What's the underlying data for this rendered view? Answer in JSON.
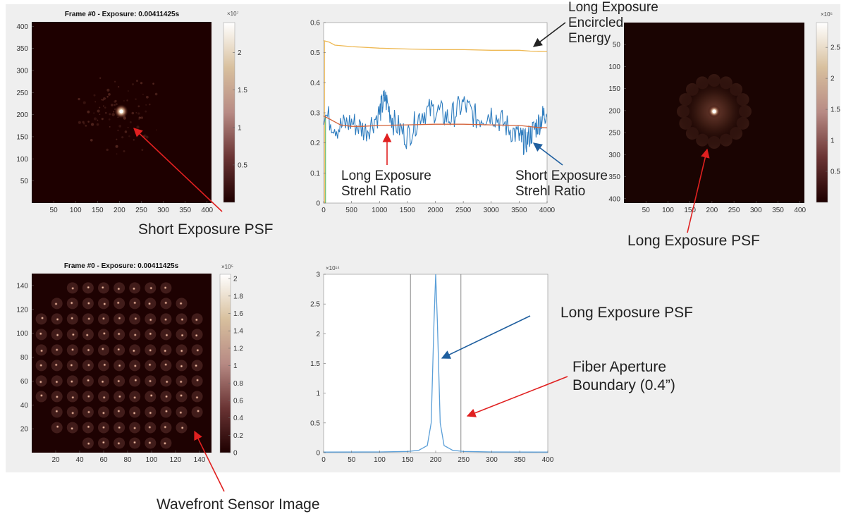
{
  "colors": {
    "panel_bg": "#efefef",
    "strehl_short": "#2f7dbf",
    "strehl_long": "#d4633a",
    "encircled": "#eeb852",
    "psf_line": "#5b9fd8",
    "aperture_line": "#8a8a8a",
    "arrow_red": "#e02020",
    "arrow_blue": "#1f5f9f",
    "arrow_black": "#222222"
  },
  "annotations": {
    "short_psf": "Short Exposure PSF",
    "long_psf_right": "Long Exposure PSF",
    "wfs": "Wavefront Sensor Image",
    "encircled_1": "Long Exposure",
    "encircled_2": "Encircled",
    "encircled_3": "Energy",
    "long_strehl_1": "Long Exposure",
    "long_strehl_2": "Strehl Ratio",
    "short_strehl_1": "Short Exposure",
    "short_strehl_2": "Strehl Ratio",
    "long_psf_plot": "Long Exposure PSF",
    "fiber_1": "Fiber Aperture",
    "fiber_2": "Boundary (0.4”)"
  },
  "chart_data": [
    {
      "type": "heatmap",
      "id": "short_psf",
      "title": "Frame #0 - Exposure: 0.00411425s",
      "x_ticks": [
        50,
        100,
        150,
        200,
        250,
        300,
        350,
        400
      ],
      "y_ticks": [
        50,
        100,
        150,
        200,
        250,
        300,
        350,
        400
      ],
      "xlim": [
        0,
        410
      ],
      "ylim": [
        0,
        410
      ],
      "colorbar": {
        "exponent": "×10⁷",
        "ticks": [
          "0.5",
          "1",
          "1.5",
          "2"
        ],
        "tick_values": [
          0.5,
          1,
          1.5,
          2
        ],
        "max": 2.4
      },
      "peak": [
        200,
        200
      ]
    },
    {
      "type": "line",
      "id": "strehl",
      "title": "",
      "x_ticks": [
        0,
        500,
        1000,
        1500,
        2000,
        2500,
        3000,
        3500,
        4000
      ],
      "y_ticks": [
        "0",
        "0.1",
        "0.2",
        "0.3",
        "0.4",
        "0.5",
        "0.6"
      ],
      "y_tick_values": [
        0,
        0.1,
        0.2,
        0.3,
        0.4,
        0.5,
        0.6
      ],
      "xlim": [
        0,
        4000
      ],
      "ylim": [
        0,
        0.6
      ],
      "series": [
        {
          "key": "encircled",
          "x": [
            0,
            100,
            200,
            500,
            1000,
            1500,
            2000,
            2500,
            3000,
            3500,
            3700,
            4000
          ],
          "y": [
            0.54,
            0.535,
            0.525,
            0.52,
            0.515,
            0.512,
            0.51,
            0.51,
            0.508,
            0.508,
            0.505,
            0.504
          ]
        },
        {
          "key": "long_strehl",
          "x": [
            0,
            100,
            200,
            300,
            500,
            700,
            1000,
            1500,
            2000,
            2500,
            3000,
            3500,
            3800,
            4000
          ],
          "y": [
            0.29,
            0.28,
            0.27,
            0.26,
            0.255,
            0.255,
            0.258,
            0.26,
            0.262,
            0.262,
            0.26,
            0.258,
            0.252,
            0.25
          ]
        },
        {
          "key": "short_strehl",
          "x": [
            0,
            250,
            500,
            750,
            1000,
            1100,
            1250,
            1500,
            1750,
            2000,
            2250,
            2500,
            2750,
            3000,
            3250,
            3500,
            3600,
            3750,
            3900,
            4000
          ],
          "y": [
            0.3,
            0.25,
            0.27,
            0.24,
            0.3,
            0.35,
            0.27,
            0.22,
            0.3,
            0.31,
            0.28,
            0.33,
            0.28,
            0.3,
            0.26,
            0.22,
            0.2,
            0.24,
            0.28,
            0.31
          ]
        }
      ]
    },
    {
      "type": "heatmap",
      "id": "long_psf",
      "title": "",
      "x_ticks": [
        50,
        100,
        150,
        200,
        250,
        300,
        350,
        400
      ],
      "y_ticks": [
        50,
        100,
        150,
        200,
        250,
        300,
        350,
        400
      ],
      "xlim": [
        0,
        410
      ],
      "ylim": [
        0,
        410
      ],
      "colorbar": {
        "exponent": "×10⁵",
        "ticks": [
          "0.5",
          "1",
          "1.5",
          "2",
          "2.5"
        ],
        "tick_values": [
          0.5,
          1,
          1.5,
          2,
          2.5
        ],
        "max": 2.9
      },
      "peak": [
        200,
        200
      ]
    },
    {
      "type": "heatmap",
      "id": "wfs",
      "title": "Frame #0 - Exposure: 0.00411425s",
      "x_ticks": [
        20,
        40,
        60,
        80,
        100,
        120,
        140
      ],
      "y_ticks": [
        20,
        40,
        60,
        80,
        100,
        120,
        140
      ],
      "xlim": [
        0,
        150
      ],
      "ylim": [
        0,
        150
      ],
      "colorbar": {
        "exponent": "×10⁵",
        "ticks": [
          "0",
          "0.2",
          "0.4",
          "0.6",
          "0.8",
          "1",
          "1.2",
          "1.4",
          "1.6",
          "1.8",
          "2"
        ],
        "tick_values": [
          0,
          0.2,
          0.4,
          0.6,
          0.8,
          1,
          1.2,
          1.4,
          1.6,
          1.8,
          2
        ],
        "max": 2.05
      }
    },
    {
      "type": "line",
      "id": "psf_profile",
      "title": "",
      "y_exponent": "×10¹⁴",
      "x_ticks": [
        0,
        50,
        100,
        150,
        200,
        250,
        300,
        350,
        400
      ],
      "y_ticks": [
        "0",
        "0.5",
        "1",
        "1.5",
        "2",
        "2.5",
        "3"
      ],
      "y_tick_values": [
        0,
        0.5,
        1,
        1.5,
        2,
        2.5,
        3
      ],
      "xlim": [
        0,
        400
      ],
      "ylim": [
        0,
        3
      ],
      "aperture_x": [
        155,
        245
      ],
      "series": [
        {
          "key": "psf",
          "x": [
            0,
            100,
            150,
            170,
            185,
            192,
            197,
            200,
            203,
            208,
            215,
            230,
            250,
            300,
            400
          ],
          "y": [
            0.01,
            0.012,
            0.02,
            0.04,
            0.12,
            0.5,
            2.2,
            3.0,
            2.2,
            0.5,
            0.12,
            0.04,
            0.02,
            0.012,
            0.01
          ]
        }
      ]
    }
  ]
}
